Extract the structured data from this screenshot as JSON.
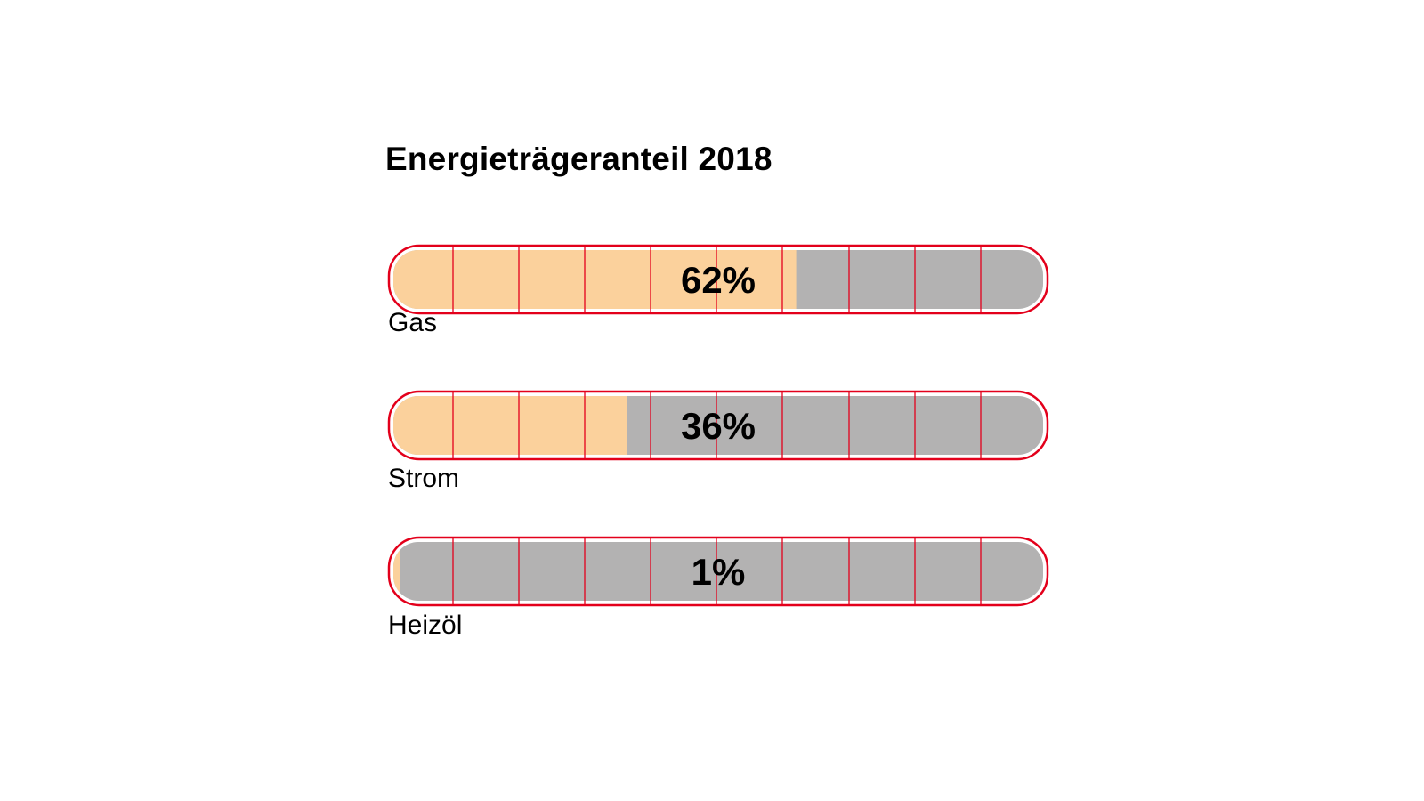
{
  "chart_data": {
    "type": "bar",
    "title": "Energieträgeranteil 2018",
    "categories": [
      "Gas",
      "Strom",
      "Heizöl"
    ],
    "values": [
      62,
      36,
      1
    ],
    "value_labels": [
      "62%",
      "36%",
      "1%"
    ],
    "ylim": [
      0,
      100
    ],
    "grid": true,
    "colors": {
      "fill": "#FBD19C",
      "track": "#B3B2B2",
      "outline": "#E3001B",
      "grid": "#E3001B"
    }
  }
}
